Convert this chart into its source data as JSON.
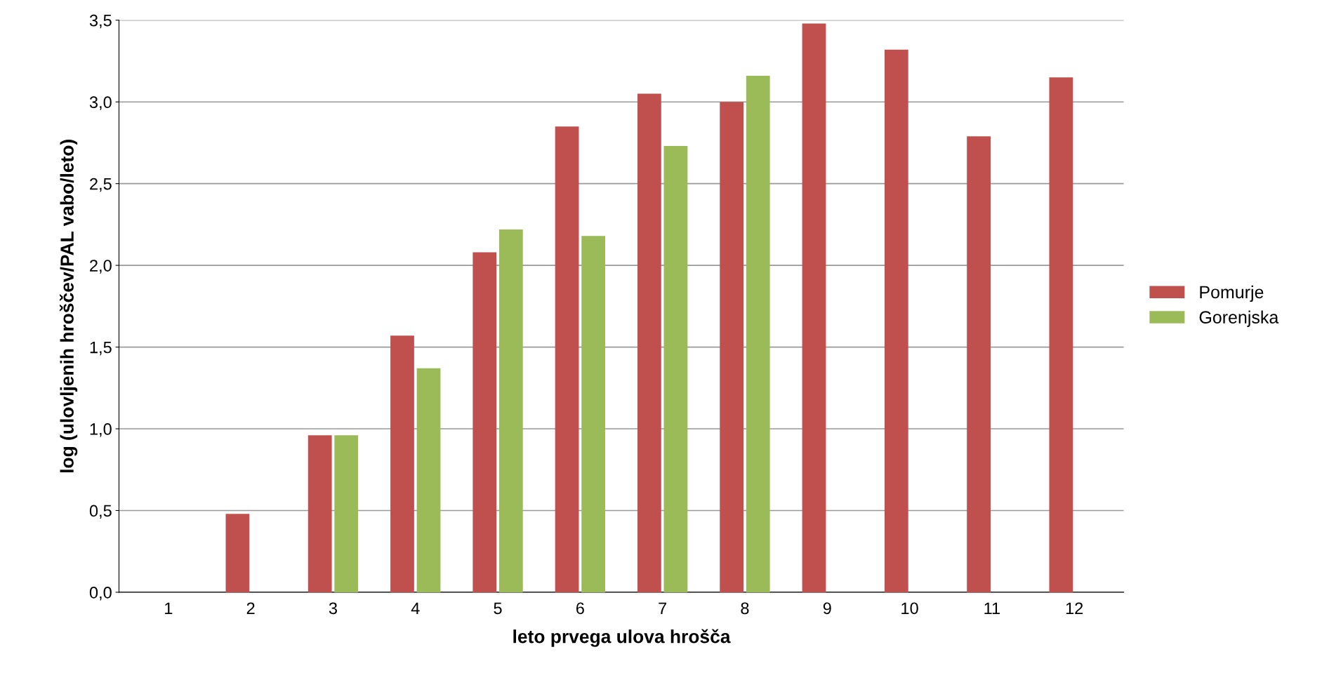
{
  "chart_data": {
    "type": "bar",
    "xlabel": "leto prvega ulova hrošča",
    "ylabel": "log (ulovljenih hroščev/PAL vabo/leto)",
    "categories": [
      "1",
      "2",
      "3",
      "4",
      "5",
      "6",
      "7",
      "8",
      "9",
      "10",
      "11",
      "12"
    ],
    "series": [
      {
        "name": "Pomurje",
        "color": "#c0504d",
        "values": [
          0,
          0.48,
          0.96,
          1.57,
          2.08,
          2.85,
          3.05,
          3.0,
          3.48,
          3.32,
          2.79,
          3.15
        ]
      },
      {
        "name": "Gorenjska",
        "color": "#9bbb59",
        "values": [
          0,
          0,
          0.96,
          1.37,
          2.22,
          2.18,
          2.73,
          3.16,
          null,
          null,
          null,
          null
        ]
      }
    ],
    "ylim": [
      0,
      3.5
    ],
    "yticks": [
      {
        "value": 0,
        "label": "0,0"
      },
      {
        "value": 0.5,
        "label": "0,5"
      },
      {
        "value": 1,
        "label": "1,0"
      },
      {
        "value": 1.5,
        "label": "1,5"
      },
      {
        "value": 2,
        "label": "2,0"
      },
      {
        "value": 2.5,
        "label": "2,5"
      },
      {
        "value": 3,
        "label": "3,0"
      },
      {
        "value": 3.5,
        "label": "3,5"
      }
    ],
    "grid": "y",
    "legend": "right"
  }
}
